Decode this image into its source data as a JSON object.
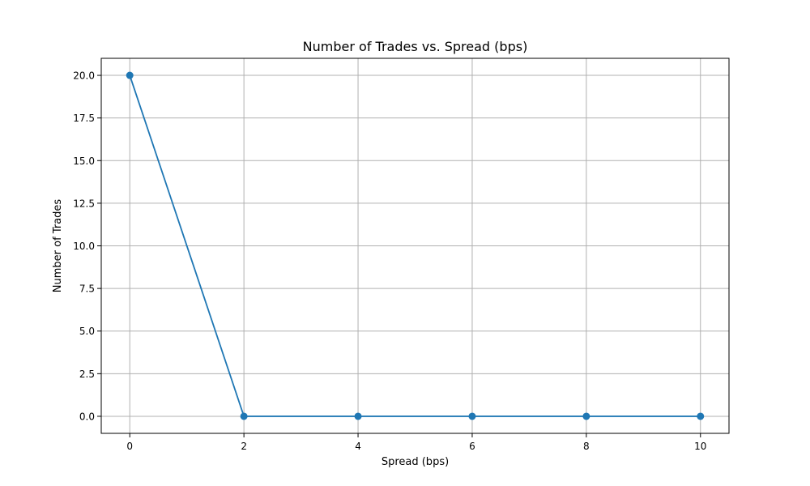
{
  "colors": {
    "line": "#1f77b4",
    "grid": "#b0b0b0",
    "axes": "#000000",
    "background": "#ffffff"
  },
  "chart_data": {
    "type": "line",
    "title": "Number of Trades vs. Spread (bps)",
    "xlabel": "Spread (bps)",
    "ylabel": "Number of Trades",
    "xlim": [
      -0.5,
      10.5
    ],
    "ylim": [
      -1,
      21
    ],
    "xticks": [
      0,
      2,
      4,
      6,
      8,
      10
    ],
    "xtick_labels": [
      "0",
      "2",
      "4",
      "6",
      "8",
      "10"
    ],
    "yticks": [
      0,
      2.5,
      5,
      7.5,
      10,
      12.5,
      15,
      17.5,
      20
    ],
    "ytick_labels": [
      "0.0",
      "2.5",
      "5.0",
      "7.5",
      "10.0",
      "12.5",
      "15.0",
      "17.5",
      "20.0"
    ],
    "grid": true,
    "marker": "circle",
    "series": [
      {
        "x": [
          0,
          2,
          4,
          6,
          8,
          10
        ],
        "y": [
          20,
          0,
          0,
          0,
          0,
          0
        ]
      }
    ]
  }
}
